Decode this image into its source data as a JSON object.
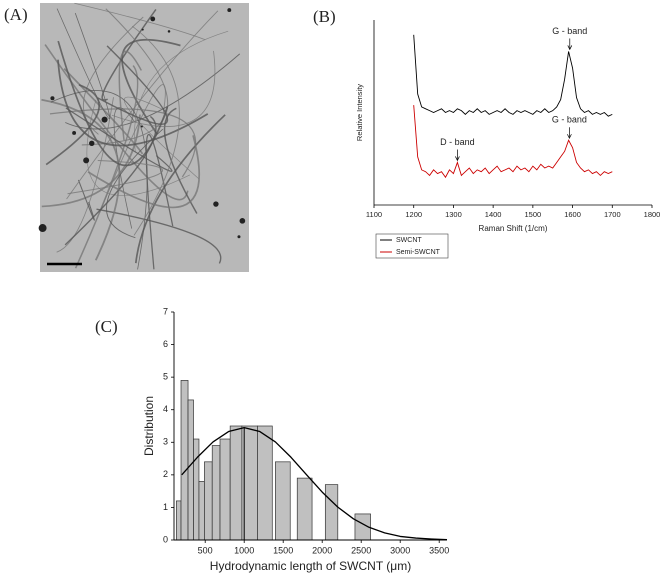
{
  "image_panel": {
    "label": "(A)"
  },
  "chart_data": [
    {
      "type": "line",
      "panel_label": "(B)",
      "x_label": "Raman Shift (1/cm)",
      "y_label": "Relative Intensity",
      "x": [
        1200,
        1210,
        1220,
        1230,
        1240,
        1250,
        1260,
        1270,
        1280,
        1290,
        1300,
        1310,
        1320,
        1330,
        1340,
        1350,
        1360,
        1370,
        1380,
        1390,
        1400,
        1410,
        1420,
        1430,
        1440,
        1450,
        1460,
        1470,
        1480,
        1490,
        1500,
        1510,
        1520,
        1530,
        1540,
        1550,
        1560,
        1570,
        1580,
        1590,
        1600,
        1610,
        1620,
        1630,
        1640,
        1650,
        1660,
        1670,
        1680,
        1690,
        1700
      ],
      "series": [
        {
          "name": "SWCNT",
          "color": "#000000",
          "values": [
            9.2,
            6.0,
            5.3,
            5.2,
            5.1,
            5.0,
            5.1,
            5.2,
            5.0,
            5.1,
            5.0,
            5.2,
            5.1,
            4.9,
            5.1,
            5.0,
            5.2,
            5.0,
            5.1,
            4.9,
            5.0,
            5.1,
            5.0,
            5.2,
            5.0,
            4.9,
            5.1,
            5.0,
            5.1,
            5.0,
            4.9,
            5.1,
            5.0,
            5.2,
            5.0,
            5.1,
            5.3,
            5.7,
            6.8,
            8.3,
            7.4,
            5.8,
            5.2,
            5.0,
            5.1,
            4.9,
            5.0,
            4.9,
            5.0,
            4.8,
            4.9
          ]
        },
        {
          "name": "Semi-SWCNT",
          "color": "#cc0000",
          "values": [
            5.4,
            2.6,
            1.9,
            1.8,
            1.6,
            1.9,
            1.7,
            1.8,
            1.5,
            1.9,
            1.7,
            2.3,
            1.6,
            1.8,
            2.0,
            1.7,
            1.9,
            1.8,
            2.0,
            1.7,
            1.9,
            2.1,
            1.8,
            1.9,
            2.0,
            1.8,
            2.1,
            1.9,
            2.0,
            1.8,
            2.1,
            1.9,
            2.2,
            2.0,
            2.1,
            2.0,
            2.3,
            2.6,
            2.9,
            3.5,
            3.1,
            2.3,
            2.0,
            1.8,
            1.9,
            1.7,
            1.8,
            1.6,
            1.8,
            1.7,
            1.8
          ]
        }
      ],
      "annotations": [
        {
          "text": "G - band",
          "x": 1593,
          "y": 8.3
        },
        {
          "text": "G - band",
          "x": 1592,
          "y": 3.5
        },
        {
          "text": "D - band",
          "x": 1310,
          "y": 2.3
        }
      ],
      "xlim": [
        1100,
        1800
      ],
      "xticks": [
        1100,
        1200,
        1300,
        1400,
        1500,
        1600,
        1700,
        1800
      ],
      "ylim": [
        0,
        10
      ]
    },
    {
      "type": "histogram",
      "panel_label": "(C)",
      "x_label": "Hydrodynamic length of SWCNT (μm)",
      "y_label": "Distribution",
      "bins": [
        130,
        190,
        280,
        350,
        420,
        490,
        590,
        690,
        820,
        970,
        1170,
        1360,
        1400,
        1590,
        1680,
        1870,
        2040,
        2200,
        2420,
        2620
      ],
      "counts": [
        1.2,
        4.9,
        4.3,
        3.1,
        1.8,
        2.4,
        2.9,
        3.1,
        3.5,
        3.5,
        3.5,
        0,
        2.4,
        0,
        1.9,
        0,
        1.7,
        0,
        0.8
      ],
      "color": "#c0c0c0",
      "fit": {
        "color": "#000000",
        "x": [
          200,
          400,
          600,
          800,
          1000,
          1200,
          1400,
          1600,
          1800,
          2000,
          2200,
          2400,
          2600,
          2800,
          3000,
          3200,
          3400,
          3600
        ],
        "values": [
          2.0,
          2.54,
          3.01,
          3.33,
          3.45,
          3.33,
          3.01,
          2.54,
          2.0,
          1.47,
          1.01,
          0.65,
          0.39,
          0.22,
          0.11,
          0.06,
          0.03,
          0.01
        ]
      },
      "reference_x": 1000,
      "xlim": [
        100,
        3600
      ],
      "xticks": [
        500,
        1000,
        1500,
        2000,
        2500,
        3000,
        3500
      ],
      "ylim": [
        0,
        7
      ],
      "yticks": [
        0,
        1,
        2,
        3,
        4,
        5,
        6,
        7
      ]
    }
  ]
}
